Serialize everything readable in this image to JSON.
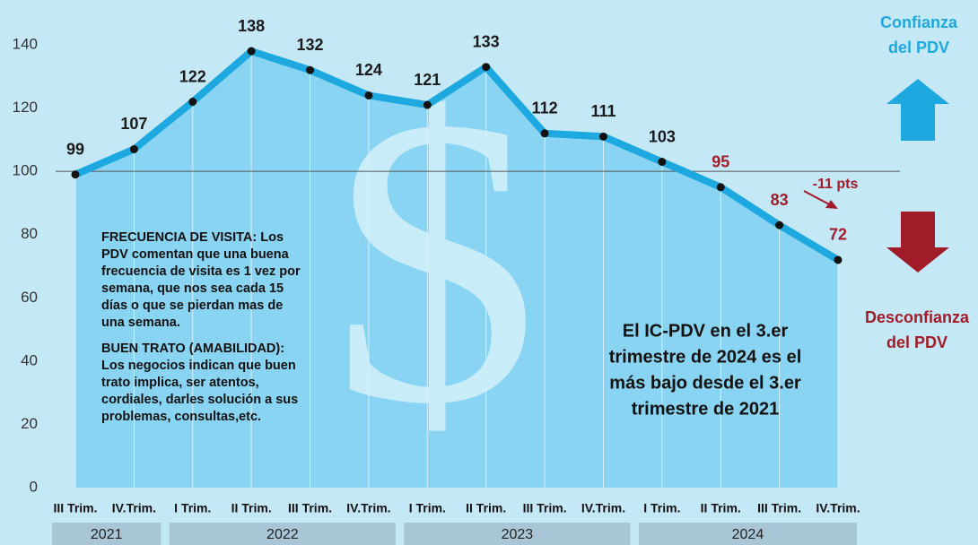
{
  "chart_data": {
    "type": "area-line",
    "categories": [
      "III Trim.",
      "IV.Trim.",
      "I Trim.",
      "II Trim.",
      "III Trim.",
      "IV.Trim.",
      "I Trim.",
      "II Trim.",
      "III Trim.",
      "IV.Trim.",
      "I Trim.",
      "II Trim.",
      "III Trim.",
      "IV.Trim."
    ],
    "year_groups": [
      {
        "label": "2021",
        "span": 2
      },
      {
        "label": "2022",
        "span": 4
      },
      {
        "label": "2023",
        "span": 4
      },
      {
        "label": "2024",
        "span": 4
      }
    ],
    "values": [
      99,
      107,
      122,
      138,
      132,
      124,
      121,
      133,
      112,
      111,
      103,
      95,
      83,
      72
    ],
    "value_label_colors": [
      "#1a1a1a",
      "#1a1a1a",
      "#1a1a1a",
      "#1a1a1a",
      "#1a1a1a",
      "#1a1a1a",
      "#1a1a1a",
      "#1a1a1a",
      "#1a1a1a",
      "#1a1a1a",
      "#1a1a1a",
      "#a01c28",
      "#a01c28",
      "#a01c28"
    ],
    "color": "#1ea8e0",
    "area_color": "#88d4f2",
    "reference_line": 100,
    "ylim": [
      0,
      140
    ],
    "yticks": [
      0,
      20,
      40,
      60,
      80,
      100,
      120,
      140
    ],
    "annotation": "-11 pts",
    "watermark": "$",
    "note_left": [
      "FRECUENCIA DE VISITA: Los",
      "PDV comentan que una buena",
      "frecuencia de visita es 1 vez por",
      "semana, que nos sea cada 15",
      "días o que se pierdan mas de",
      "una semana.",
      "BUEN TRATO (AMABILIDAD):",
      "Los negocios indican que buen",
      "trato implica, ser atentos,",
      "cordiales, darles solución a sus",
      "problemas, consultas,etc."
    ],
    "note_center": [
      "El IC-PDV en el 3.er",
      "trimestre de 2024 es el",
      "más bajo desde el 3.er",
      "trimestre de 2021"
    ],
    "legend_up": [
      "Confianza",
      "del PDV"
    ],
    "legend_down": [
      "Desconfianza",
      "del PDV"
    ]
  }
}
